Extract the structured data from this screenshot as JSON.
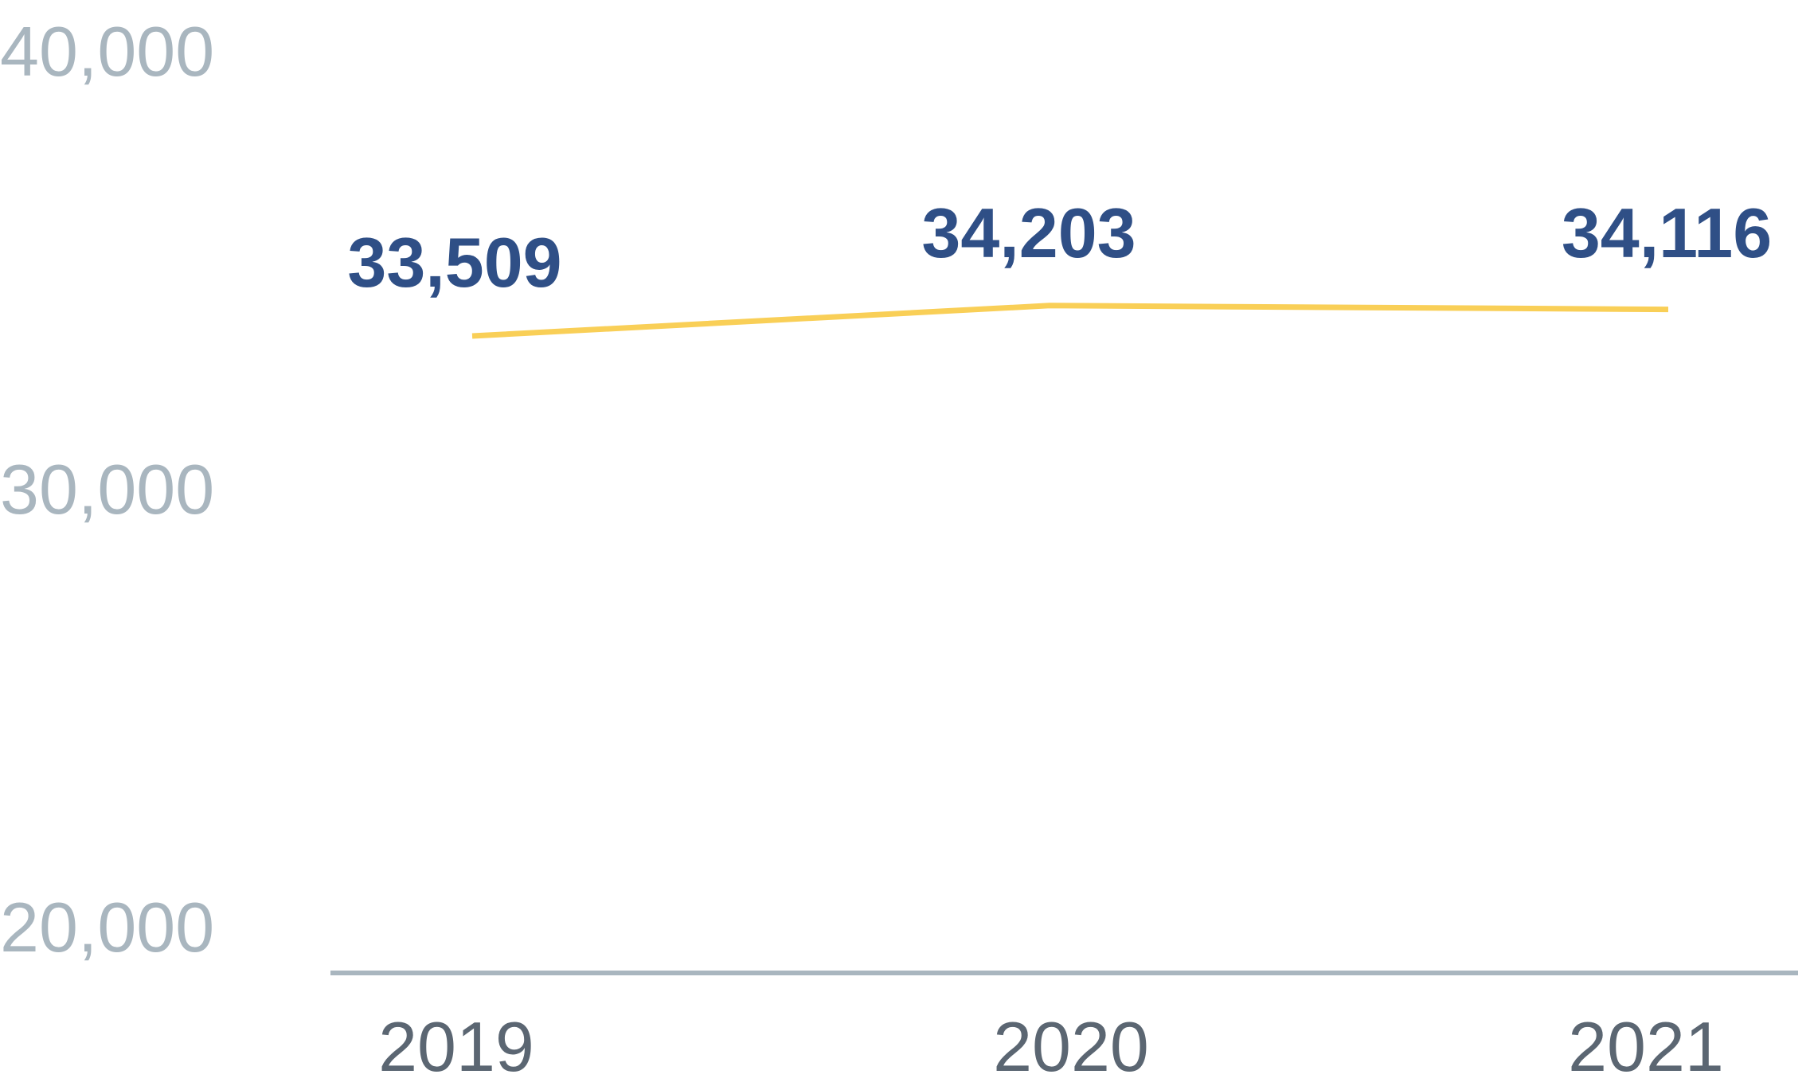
{
  "chart_data": {
    "type": "line",
    "categories": [
      "2019",
      "2020",
      "2021"
    ],
    "series": [
      {
        "values": [
          33509,
          34203,
          34116
        ],
        "data_labels": [
          "33,509",
          "34,203",
          "34,116"
        ],
        "color": "#f9cf57"
      }
    ],
    "ylim": [
      20000,
      40000
    ],
    "yticks": [
      40000,
      30000,
      20000
    ],
    "ytick_labels": [
      "40,000",
      "30,000",
      "20,000"
    ],
    "grid": false,
    "colors": {
      "line": "#f9cf57",
      "data_label": "#2f4f86",
      "y_tick": "#a9b6bf",
      "x_tick": "#5b6672",
      "axis": "#a9b6bf"
    }
  }
}
